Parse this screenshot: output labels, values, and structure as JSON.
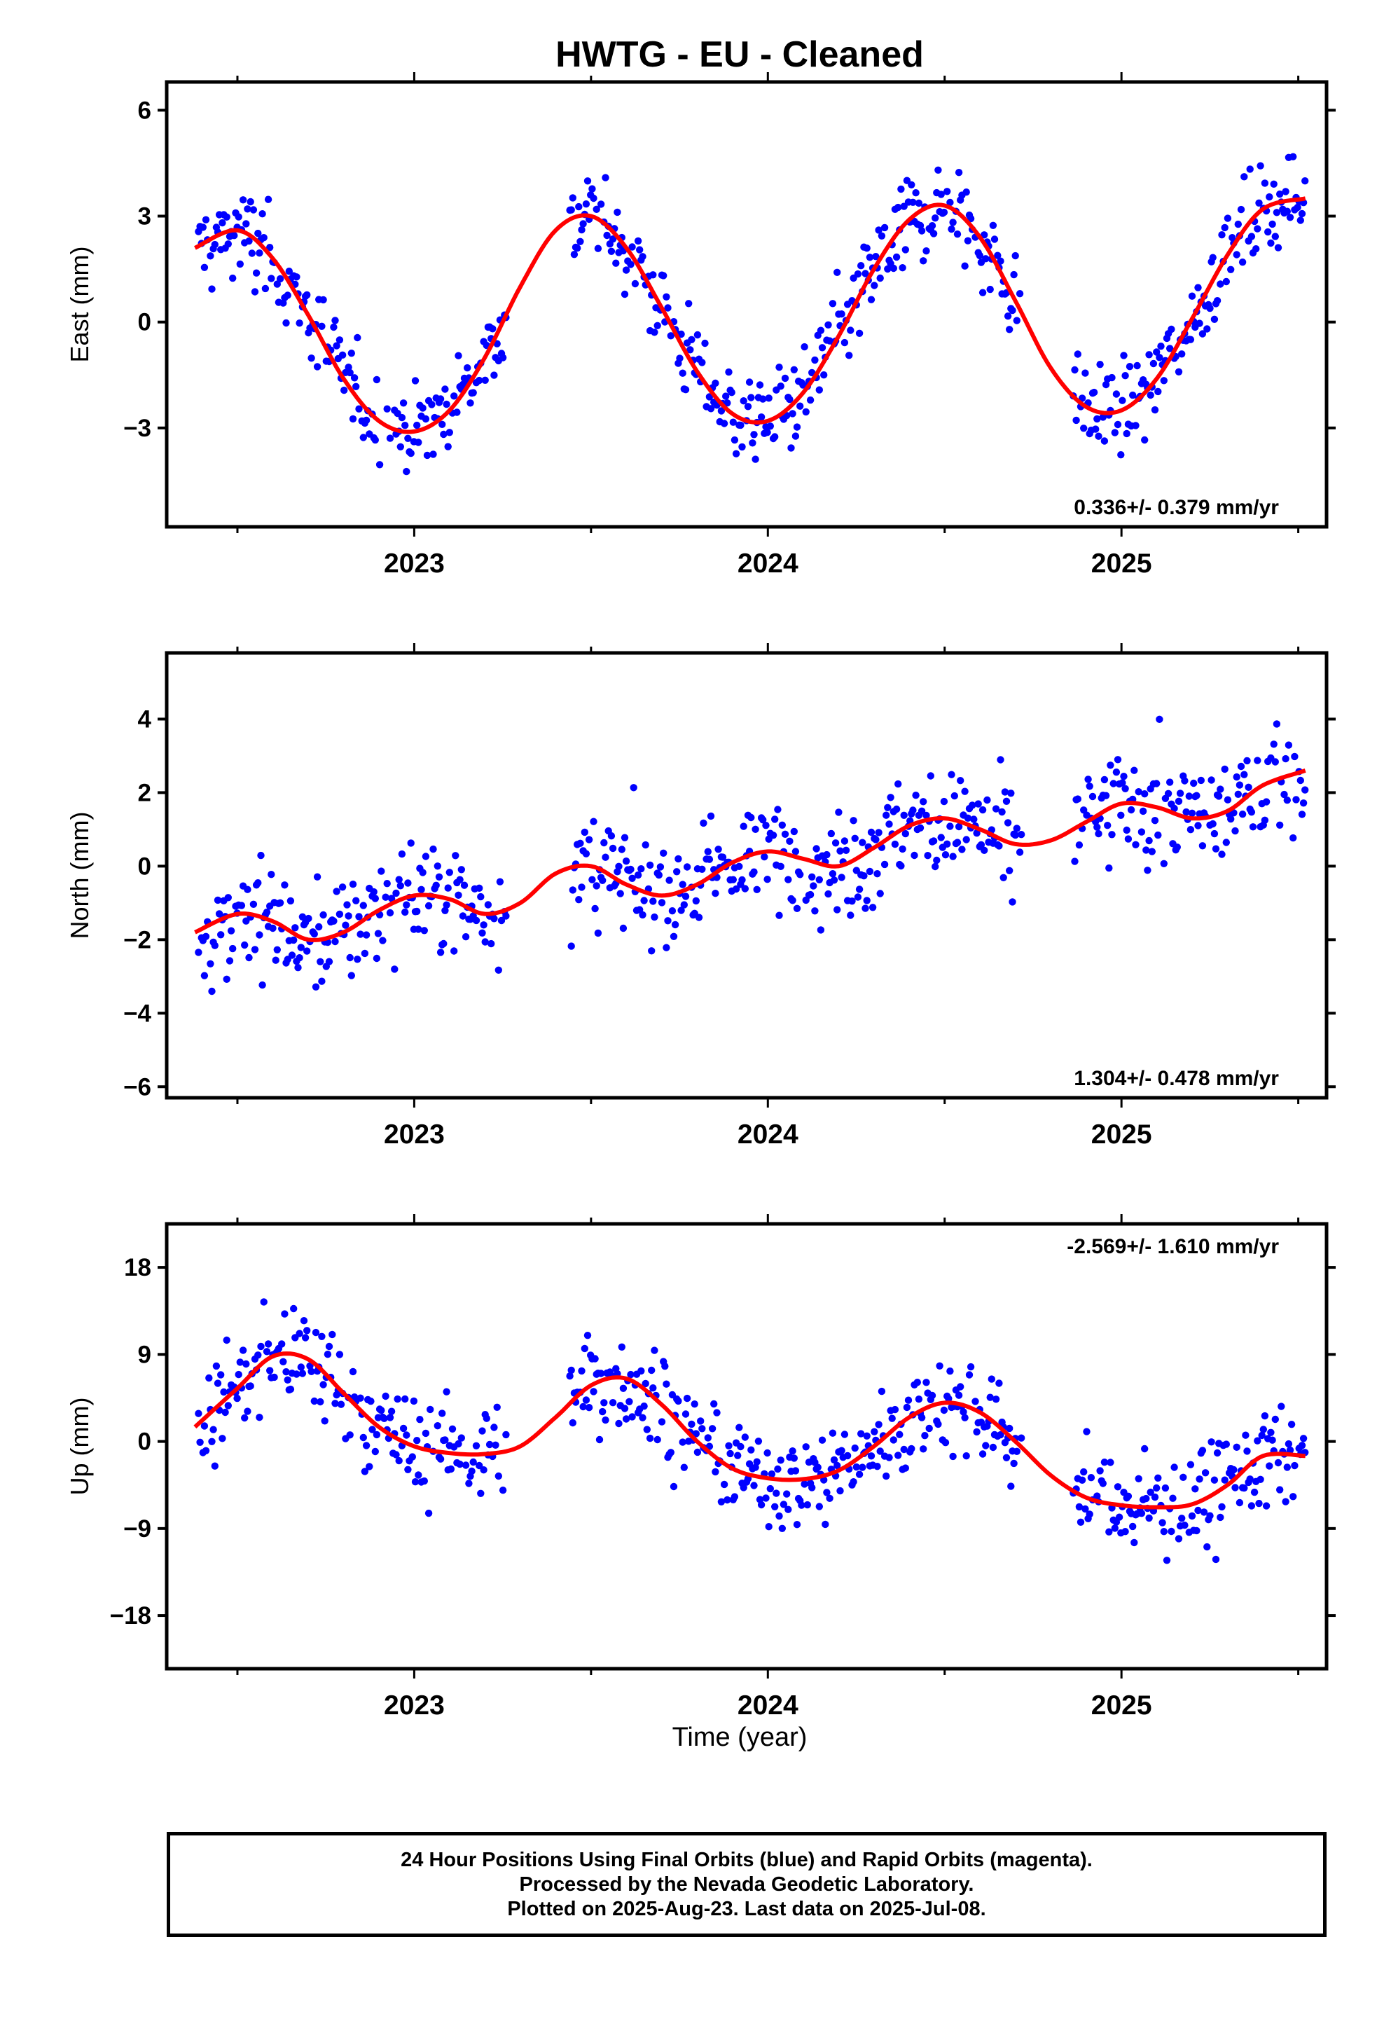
{
  "title": "HWTG  - EU - Cleaned",
  "x_axis_label": "Time (year)",
  "x_tick_labels": [
    "2023",
    "2024",
    "2025"
  ],
  "caption": {
    "line1": "24 Hour Positions Using Final Orbits (blue) and Rapid Orbits (magenta).",
    "line2": "Processed by the Nevada Geodetic Laboratory.",
    "line3": "Plotted on 2025-Aug-23. Last data on 2025-Jul-08."
  },
  "colors": {
    "points": "#0000ff",
    "model": "#ff0000",
    "axes": "#000000"
  },
  "chart_data": [
    {
      "type": "scatter",
      "component": "East",
      "ylabel": "East (mm)",
      "xlim": [
        2022.3,
        2025.58
      ],
      "ylim": [
        -5.8,
        6.8
      ],
      "yticks": [
        -3,
        0,
        3,
        6
      ],
      "xticks": [
        2023,
        2024,
        2025
      ],
      "rate_label": "0.336+/- 0.379 mm/yr",
      "rate_position": "bottom-right",
      "model": {
        "x": [
          2022.38,
          2022.5,
          2022.6,
          2022.7,
          2022.8,
          2022.9,
          2023.0,
          2023.1,
          2023.2,
          2023.3,
          2023.4,
          2023.5,
          2023.6,
          2023.7,
          2023.8,
          2023.9,
          2024.0,
          2024.1,
          2024.2,
          2024.3,
          2024.4,
          2024.5,
          2024.6,
          2024.7,
          2024.8,
          2024.9,
          2025.0,
          2025.1,
          2025.2,
          2025.3,
          2025.4,
          2025.52
        ],
        "y": [
          2.1,
          2.6,
          1.8,
          0.2,
          -1.6,
          -2.8,
          -3.1,
          -2.5,
          -1.0,
          1.0,
          2.6,
          3.0,
          2.1,
          0.4,
          -1.4,
          -2.6,
          -2.8,
          -2.0,
          -0.4,
          1.5,
          2.9,
          3.3,
          2.4,
          0.6,
          -1.3,
          -2.4,
          -2.5,
          -1.6,
          0.1,
          1.9,
          3.2,
          3.5
        ]
      },
      "points": {
        "description": "approx. 900 daily East positions",
        "x": [
          2022.4,
          2022.45,
          2022.52,
          2022.6,
          2022.7,
          2022.8,
          2022.9,
          2023.0,
          2023.1,
          2023.2,
          2023.5,
          2023.6,
          2023.7,
          2023.8,
          2023.9,
          2024.0,
          2024.1,
          2024.2,
          2024.3,
          2024.4,
          2024.5,
          2024.6,
          2024.7,
          2024.88,
          2024.95,
          2025.05,
          2025.15,
          2025.25,
          2025.35,
          2025.45,
          2025.52
        ],
        "y": [
          2.5,
          2.4,
          2.8,
          0.8,
          -0.5,
          -2.2,
          -3.0,
          -3.5,
          -2.3,
          -0.8,
          2.8,
          2.3,
          0.2,
          -1.3,
          -3.2,
          -2.8,
          -2.0,
          -0.8,
          1.2,
          2.6,
          3.5,
          2.6,
          0.9,
          -2.8,
          -3.1,
          -2.5,
          -1.2,
          0.3,
          2.0,
          3.6,
          3.8
        ]
      }
    },
    {
      "type": "scatter",
      "component": "North",
      "ylabel": "North (mm)",
      "xlim": [
        2022.3,
        2025.58
      ],
      "ylim": [
        -6.3,
        5.8
      ],
      "yticks": [
        -6,
        -4,
        -2,
        0,
        2,
        4
      ],
      "xticks": [
        2023,
        2024,
        2025
      ],
      "rate_label": "1.304+/- 0.478 mm/yr",
      "rate_position": "bottom-right",
      "model": {
        "x": [
          2022.38,
          2022.5,
          2022.6,
          2022.7,
          2022.8,
          2022.9,
          2023.0,
          2023.1,
          2023.2,
          2023.3,
          2023.4,
          2023.5,
          2023.6,
          2023.7,
          2023.8,
          2023.9,
          2024.0,
          2024.1,
          2024.2,
          2024.3,
          2024.4,
          2024.5,
          2024.6,
          2024.7,
          2024.8,
          2024.9,
          2025.0,
          2025.1,
          2025.2,
          2025.3,
          2025.4,
          2025.52
        ],
        "y": [
          -1.8,
          -1.3,
          -1.5,
          -2.0,
          -1.8,
          -1.2,
          -0.8,
          -0.9,
          -1.3,
          -1.0,
          -0.2,
          0.0,
          -0.5,
          -0.8,
          -0.5,
          0.1,
          0.4,
          0.2,
          0.0,
          0.5,
          1.1,
          1.3,
          1.0,
          0.6,
          0.7,
          1.2,
          1.7,
          1.6,
          1.3,
          1.5,
          2.2,
          2.6
        ]
      },
      "points": {
        "description": "approx. 900 daily North positions",
        "x": [
          2022.4,
          2022.5,
          2022.6,
          2022.7,
          2022.8,
          2022.9,
          2023.0,
          2023.1,
          2023.2,
          2023.5,
          2023.6,
          2023.7,
          2023.8,
          2023.9,
          2024.0,
          2024.1,
          2024.2,
          2024.3,
          2024.4,
          2024.5,
          2024.6,
          2024.7,
          2024.88,
          2024.95,
          2025.05,
          2025.15,
          2025.25,
          2025.35,
          2025.45,
          2025.52
        ],
        "y": [
          -1.0,
          -1.5,
          -2.2,
          -2.5,
          -1.8,
          -1.0,
          -1.2,
          -0.8,
          -1.5,
          -0.3,
          -0.8,
          -1.0,
          -1.3,
          0.0,
          0.6,
          0.5,
          0.3,
          1.2,
          1.5,
          1.2,
          0.8,
          0.5,
          1.0,
          2.5,
          1.5,
          0.8,
          0.8,
          0.5,
          1.5,
          2.0
        ]
      }
    },
    {
      "type": "scatter",
      "component": "Up",
      "ylabel": "Up (mm)",
      "xlim": [
        2022.3,
        2025.58
      ],
      "ylim": [
        -23.5,
        22.5
      ],
      "yticks": [
        -18,
        -9,
        0,
        9,
        18
      ],
      "xticks": [
        2023,
        2024,
        2025
      ],
      "rate_label": "-2.569+/- 1.610 mm/yr",
      "rate_position": "top-right",
      "model": {
        "x": [
          2022.38,
          2022.5,
          2022.6,
          2022.7,
          2022.8,
          2022.9,
          2023.0,
          2023.1,
          2023.2,
          2023.3,
          2023.4,
          2023.5,
          2023.6,
          2023.7,
          2023.8,
          2023.9,
          2024.0,
          2024.1,
          2024.2,
          2024.3,
          2024.4,
          2024.5,
          2024.6,
          2024.7,
          2024.8,
          2024.9,
          2025.0,
          2025.1,
          2025.2,
          2025.3,
          2025.4,
          2025.52
        ],
        "y": [
          1.5,
          5.5,
          8.8,
          8.5,
          5.0,
          1.5,
          -0.5,
          -1.2,
          -1.3,
          -0.5,
          2.5,
          5.8,
          6.5,
          3.8,
          0.0,
          -2.8,
          -3.8,
          -3.9,
          -3.0,
          -0.5,
          2.5,
          4.0,
          3.0,
          0.0,
          -3.5,
          -5.8,
          -6.6,
          -6.8,
          -6.5,
          -4.5,
          -1.5,
          -1.5
        ]
      },
      "points": {
        "description": "approx. 900 daily Up positions",
        "x": [
          2022.4,
          2022.5,
          2022.6,
          2022.7,
          2022.8,
          2022.9,
          2023.0,
          2023.1,
          2023.2,
          2023.5,
          2023.6,
          2023.7,
          2023.8,
          2023.9,
          2024.0,
          2024.1,
          2024.2,
          2024.3,
          2024.4,
          2024.5,
          2024.6,
          2024.7,
          2024.88,
          2024.95,
          2025.05,
          2025.15,
          2025.25,
          2025.35,
          2025.45,
          2025.52
        ],
        "y": [
          2.0,
          6.0,
          8.5,
          9.0,
          4.0,
          0.5,
          -1.5,
          -3.0,
          -4.0,
          4.0,
          6.5,
          4.5,
          0.0,
          -2.5,
          -5.0,
          -5.0,
          -4.0,
          -1.5,
          2.0,
          3.0,
          1.0,
          -1.0,
          -4.0,
          -6.5,
          -7.5,
          -7.0,
          -6.5,
          -5.0,
          -3.0,
          -2.0
        ]
      }
    }
  ]
}
